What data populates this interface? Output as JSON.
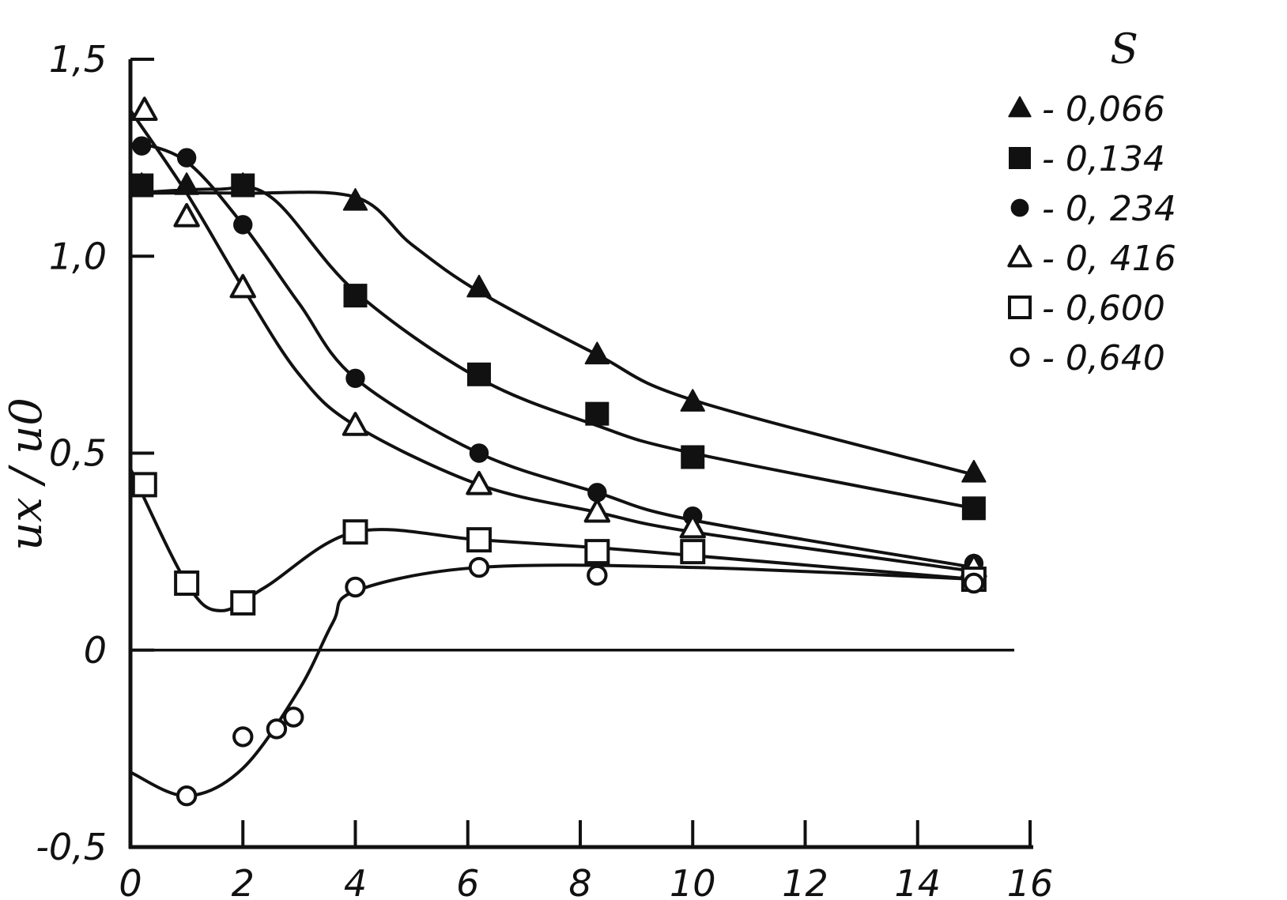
{
  "chart_data": {
    "type": "scatter",
    "xlim": [
      0,
      16
    ],
    "ylim": [
      -0.5,
      1.5
    ],
    "xticks": [
      "0",
      "2",
      "4",
      "6",
      "8",
      "10",
      "12",
      "14",
      "16"
    ],
    "yticks": [
      "-0,5",
      "0",
      "0,5",
      "1,0",
      "1,5"
    ],
    "ylabel": "ux / u0",
    "xlabel": "",
    "legend_title": "S",
    "legend_position": "top-right",
    "grid": false,
    "reference_line": 0,
    "series": [
      {
        "name": "- 0,066",
        "marker": "triangle-filled",
        "points": [
          [
            0.2,
            1.18
          ],
          [
            1.0,
            1.18
          ],
          [
            2.0,
            1.18
          ],
          [
            4.0,
            1.14
          ],
          [
            6.2,
            0.92
          ],
          [
            8.3,
            0.75
          ],
          [
            10.0,
            0.63
          ],
          [
            15.0,
            0.45
          ]
        ],
        "curve": [
          [
            0.0,
            1.16
          ],
          [
            2.0,
            1.16
          ],
          [
            4.0,
            1.15
          ],
          [
            5.0,
            1.03
          ],
          [
            6.2,
            0.91
          ],
          [
            8.3,
            0.75
          ],
          [
            10.0,
            0.635
          ],
          [
            15.0,
            0.445
          ]
        ]
      },
      {
        "name": "- 0,134",
        "marker": "square-filled",
        "points": [
          [
            0.2,
            1.18
          ],
          [
            2.0,
            1.18
          ],
          [
            4.0,
            0.9
          ],
          [
            6.2,
            0.7
          ],
          [
            8.3,
            0.6
          ],
          [
            10.0,
            0.49
          ],
          [
            15.0,
            0.36
          ]
        ],
        "curve": [
          [
            0.0,
            1.16
          ],
          [
            1.5,
            1.17
          ],
          [
            2.5,
            1.15
          ],
          [
            4.0,
            0.91
          ],
          [
            6.2,
            0.69
          ],
          [
            8.3,
            0.57
          ],
          [
            10.0,
            0.5
          ],
          [
            15.0,
            0.36
          ]
        ]
      },
      {
        "name": "- 0, 234",
        "marker": "circle-filled",
        "points": [
          [
            0.2,
            1.28
          ],
          [
            1.0,
            1.25
          ],
          [
            2.0,
            1.08
          ],
          [
            4.0,
            0.69
          ],
          [
            6.2,
            0.5
          ],
          [
            8.3,
            0.4
          ],
          [
            10.0,
            0.34
          ],
          [
            15.0,
            0.22
          ]
        ],
        "curve": [
          [
            0.1,
            1.29
          ],
          [
            1.0,
            1.24
          ],
          [
            2.0,
            1.08
          ],
          [
            3.0,
            0.88
          ],
          [
            4.0,
            0.69
          ],
          [
            6.2,
            0.5
          ],
          [
            8.3,
            0.4
          ],
          [
            10.0,
            0.33
          ],
          [
            15.0,
            0.21
          ]
        ]
      },
      {
        "name": "- 0, 416",
        "marker": "triangle-open",
        "points": [
          [
            0.25,
            1.37
          ],
          [
            1.0,
            1.1
          ],
          [
            2.0,
            0.92
          ],
          [
            4.0,
            0.57
          ],
          [
            6.2,
            0.42
          ],
          [
            8.3,
            0.35
          ],
          [
            10.0,
            0.31
          ],
          [
            15.0,
            0.21
          ]
        ],
        "curve": [
          [
            0.0,
            1.37
          ],
          [
            1.0,
            1.16
          ],
          [
            2.0,
            0.92
          ],
          [
            3.0,
            0.7
          ],
          [
            4.0,
            0.57
          ],
          [
            6.2,
            0.42
          ],
          [
            8.3,
            0.35
          ],
          [
            10.0,
            0.3
          ],
          [
            15.0,
            0.2
          ]
        ]
      },
      {
        "name": "- 0,600",
        "marker": "square-open",
        "points": [
          [
            0.25,
            0.42
          ],
          [
            1.0,
            0.17
          ],
          [
            2.0,
            0.12
          ],
          [
            4.0,
            0.3
          ],
          [
            6.2,
            0.28
          ],
          [
            8.3,
            0.25
          ],
          [
            10.0,
            0.25
          ],
          [
            15.0,
            0.18
          ]
        ],
        "curve": [
          [
            0.0,
            0.46
          ],
          [
            1.0,
            0.17
          ],
          [
            1.6,
            0.1
          ],
          [
            2.4,
            0.16
          ],
          [
            4.0,
            0.3
          ],
          [
            6.2,
            0.28
          ],
          [
            8.3,
            0.26
          ],
          [
            10.0,
            0.24
          ],
          [
            15.0,
            0.18
          ]
        ]
      },
      {
        "name": "- 0,640",
        "marker": "circle-open",
        "points": [
          [
            1.0,
            -0.37
          ],
          [
            2.0,
            -0.22
          ],
          [
            2.6,
            -0.2
          ],
          [
            2.9,
            -0.17
          ],
          [
            4.0,
            0.16
          ],
          [
            6.2,
            0.21
          ],
          [
            8.3,
            0.19
          ],
          [
            15.0,
            0.17
          ]
        ],
        "curve": [
          [
            0.0,
            -0.31
          ],
          [
            1.0,
            -0.37
          ],
          [
            2.0,
            -0.3
          ],
          [
            3.0,
            -0.1
          ],
          [
            3.6,
            0.07
          ],
          [
            4.0,
            0.15
          ],
          [
            6.2,
            0.21
          ],
          [
            10.0,
            0.21
          ],
          [
            15.0,
            0.18
          ]
        ]
      }
    ]
  }
}
